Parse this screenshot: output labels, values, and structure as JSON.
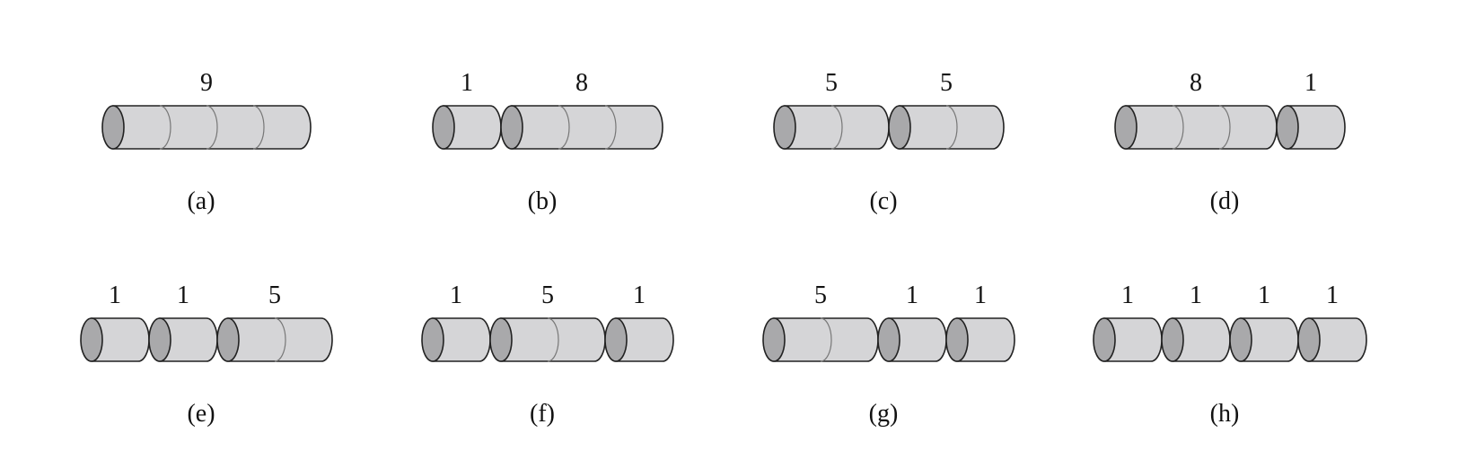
{
  "figure": {
    "colors": {
      "body": "#d5d5d7",
      "cap": "#a9a9ab",
      "outline": "#222222",
      "segment": "#777777"
    },
    "panels": [
      {
        "label": "(a)",
        "pieces": [
          {
            "length": 4,
            "price": "9"
          }
        ]
      },
      {
        "label": "(b)",
        "pieces": [
          {
            "length": 1,
            "price": "1"
          },
          {
            "length": 3,
            "price": "8"
          }
        ]
      },
      {
        "label": "(c)",
        "pieces": [
          {
            "length": 2,
            "price": "5"
          },
          {
            "length": 2,
            "price": "5"
          }
        ]
      },
      {
        "label": "(d)",
        "pieces": [
          {
            "length": 3,
            "price": "8"
          },
          {
            "length": 1,
            "price": "1"
          }
        ]
      },
      {
        "label": "(e)",
        "pieces": [
          {
            "length": 1,
            "price": "1"
          },
          {
            "length": 1,
            "price": "1"
          },
          {
            "length": 2,
            "price": "5"
          }
        ]
      },
      {
        "label": "(f)",
        "pieces": [
          {
            "length": 1,
            "price": "1"
          },
          {
            "length": 2,
            "price": "5"
          },
          {
            "length": 1,
            "price": "1"
          }
        ]
      },
      {
        "label": "(g)",
        "pieces": [
          {
            "length": 2,
            "price": "5"
          },
          {
            "length": 1,
            "price": "1"
          },
          {
            "length": 1,
            "price": "1"
          }
        ]
      },
      {
        "label": "(h)",
        "pieces": [
          {
            "length": 1,
            "price": "1"
          },
          {
            "length": 1,
            "price": "1"
          },
          {
            "length": 1,
            "price": "1"
          },
          {
            "length": 1,
            "price": "1"
          }
        ]
      }
    ]
  }
}
